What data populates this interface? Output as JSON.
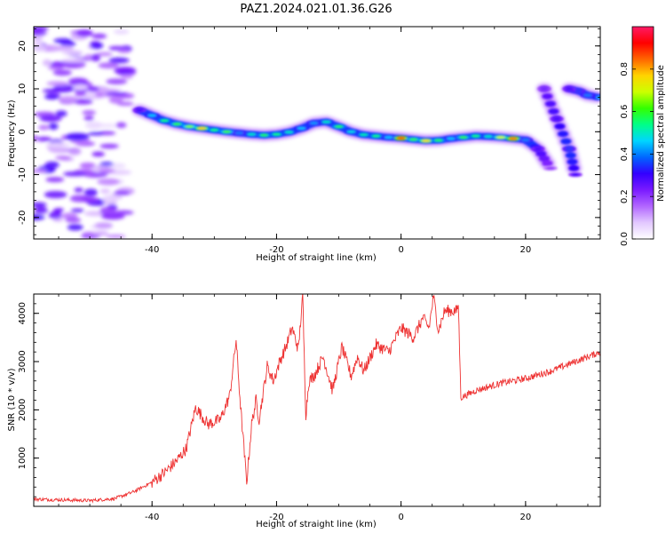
{
  "figure": {
    "title": "PAZ1.2024.021.01.36.G26"
  },
  "chart_data": [
    {
      "type": "heatmap",
      "title": "",
      "xlabel": "Height of straight line (km)",
      "ylabel": "Frequency (Hz)",
      "xlim": [
        -59,
        32
      ],
      "ylim": [
        -25,
        24.5
      ],
      "xticks": [
        -40,
        -20,
        0,
        20
      ],
      "yticks": [
        -20,
        -10,
        0,
        10,
        20
      ],
      "colorbar": {
        "label": "Normalized spectral amplitude",
        "range": [
          0,
          1
        ],
        "ticks": [
          0.0,
          0.2,
          0.4,
          0.6,
          0.8
        ],
        "colormap": [
          "#ffffff",
          "#e2c8ff",
          "#b266ff",
          "#7a1aff",
          "#3300ff",
          "#0066ff",
          "#00d5ff",
          "#00ff88",
          "#33ff00",
          "#ccff00",
          "#ffd400",
          "#ff6600",
          "#ff0000",
          "#ff1a66"
        ]
      },
      "ridge": {
        "x": [
          -42,
          -40,
          -38,
          -36,
          -34,
          -32,
          -30,
          -28,
          -26,
          -24,
          -22,
          -20,
          -18,
          -16,
          -14,
          -12,
          -10,
          -8,
          -6,
          -4,
          -2,
          0,
          2,
          4,
          6,
          8,
          10,
          12,
          14,
          16,
          18,
          20,
          22,
          24
        ],
        "freq": [
          5,
          3.8,
          2.6,
          1.8,
          1.2,
          0.8,
          0.4,
          0.0,
          -0.3,
          -0.6,
          -0.8,
          -0.6,
          -0.1,
          0.8,
          2.0,
          2.3,
          1.2,
          0.0,
          -0.7,
          -1.0,
          -1.3,
          -1.5,
          -1.8,
          -2.1,
          -2.0,
          -1.6,
          -1.3,
          -1.0,
          -1.1,
          -1.3,
          -1.6,
          -1.9,
          -4.0,
          -8.5
        ],
        "amplitude": [
          0.3,
          0.45,
          0.55,
          0.6,
          0.65,
          0.78,
          0.55,
          0.62,
          0.4,
          0.5,
          0.58,
          0.55,
          0.5,
          0.45,
          0.42,
          0.5,
          0.58,
          0.48,
          0.52,
          0.55,
          0.45,
          0.9,
          0.6,
          0.75,
          0.58,
          0.45,
          0.6,
          0.55,
          0.5,
          0.7,
          0.85,
          0.4,
          0.3,
          0.2
        ]
      },
      "scattered_region": {
        "x_range": [
          -59,
          -44
        ],
        "freq_range": [
          -25,
          24.5
        ],
        "amplitude_range": [
          0.05,
          0.3
        ]
      },
      "right_segments": [
        {
          "x": [
            23,
            25,
            27,
            28
          ],
          "freq": [
            10,
            3,
            -4,
            -10
          ],
          "amplitude": [
            0.25,
            0.3,
            0.35,
            0.3
          ]
        },
        {
          "x": [
            27,
            28.5,
            30,
            32
          ],
          "freq": [
            10,
            9.5,
            8.5,
            8
          ],
          "amplitude": [
            0.3,
            0.35,
            0.4,
            0.45
          ]
        }
      ]
    },
    {
      "type": "line",
      "title": "",
      "xlabel": "Height of straight line (km)",
      "ylabel": "SNR (10 * v/v)",
      "xlim": [
        -59,
        32
      ],
      "ylim": [
        0,
        4400
      ],
      "xticks": [
        -40,
        -20,
        0,
        20
      ],
      "yticks": [
        1000,
        2000,
        3000,
        4000
      ],
      "color": "#ee3333",
      "series": [
        {
          "x": [
            -59,
            -50,
            -46,
            -43,
            -40,
            -38,
            -36,
            -34.5,
            -33,
            -31,
            -29,
            -27.5,
            -26.5,
            -25.8,
            -24.8,
            -24,
            -23.3,
            -22.8,
            -21.5,
            -20.5,
            -19.5,
            -18.5,
            -17.5,
            -16.5,
            -15.8,
            -15.3,
            -14.8,
            -14,
            -12.5,
            -11,
            -9.5,
            -8,
            -7,
            -6,
            -4,
            -2,
            0,
            2,
            3.5,
            4.5,
            5.2,
            6,
            7,
            9,
            9.2,
            9.6,
            12,
            16,
            20,
            24,
            28,
            32
          ],
          "y": [
            150,
            120,
            160,
            300,
            500,
            700,
            950,
            1200,
            2050,
            1700,
            1800,
            2300,
            3450,
            2100,
            500,
            1700,
            2200,
            1800,
            2900,
            2600,
            3000,
            3300,
            3700,
            3250,
            4350,
            1900,
            2600,
            2700,
            3100,
            2400,
            3300,
            2700,
            3100,
            2800,
            3350,
            3200,
            3700,
            3500,
            3900,
            3700,
            4350,
            3650,
            4050,
            4050,
            4200,
            2250,
            2400,
            2550,
            2650,
            2800,
            3000,
            3200
          ]
        }
      ]
    }
  ]
}
